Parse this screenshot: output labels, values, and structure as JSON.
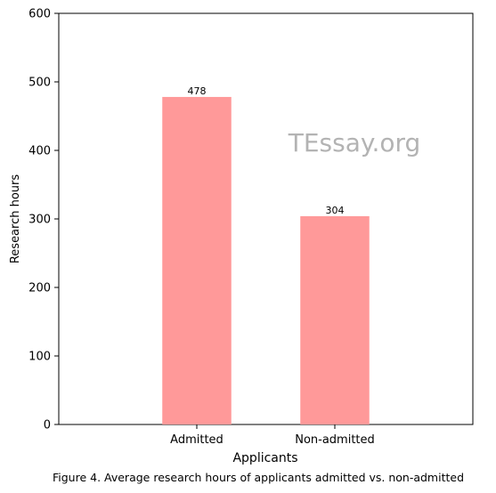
{
  "chart_data": {
    "type": "bar",
    "categories": [
      "Admitted",
      "Non-admitted"
    ],
    "values": [
      478,
      304
    ],
    "data_labels": [
      "478",
      "304"
    ],
    "xlabel": "Applicants",
    "ylabel": "Research hours",
    "ylim": [
      0,
      600
    ],
    "yticks": [
      0,
      100,
      200,
      300,
      400,
      500,
      600
    ],
    "bar_color": "#ff9999",
    "grid": false,
    "legend": "none"
  },
  "watermark": "TEssay.org",
  "caption": "Figure 4. Average research hours of applicants admitted vs. non-admitted"
}
